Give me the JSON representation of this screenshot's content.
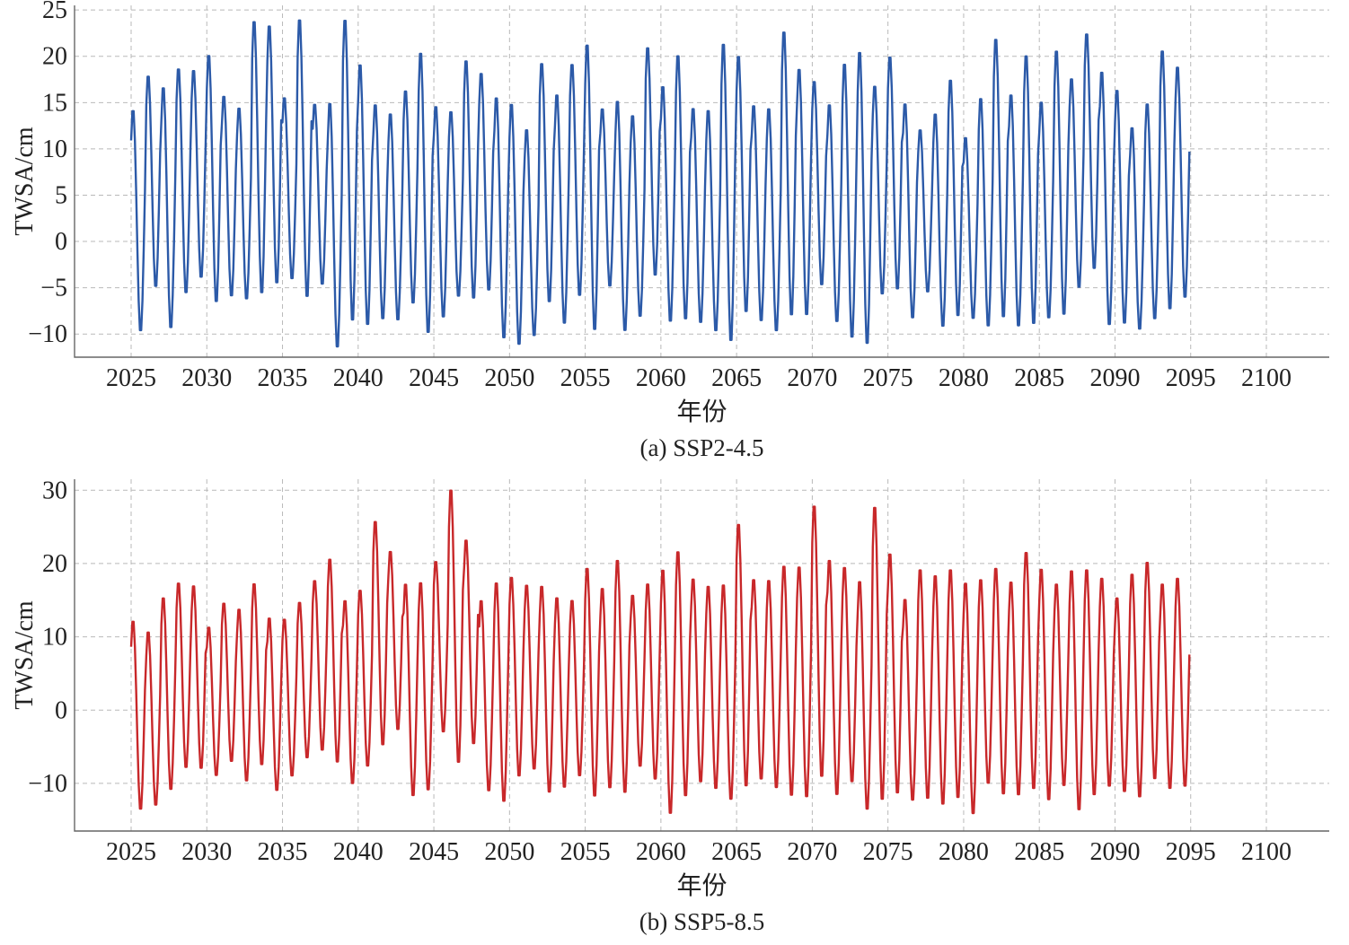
{
  "chart_data": [
    {
      "type": "line",
      "caption": "(a) SSP2-4.5",
      "xlabel": "年份",
      "ylabel": "TWSA/cm",
      "xlim": [
        2025,
        2101
      ],
      "ylim": [
        -12.5,
        25.5
      ],
      "xticks": [
        2025,
        2030,
        2035,
        2040,
        2045,
        2050,
        2055,
        2060,
        2065,
        2070,
        2075,
        2080,
        2085,
        2090,
        2095,
        2100
      ],
      "yticks": [
        -10,
        -5,
        0,
        5,
        10,
        15,
        20,
        25
      ],
      "grid": true,
      "series": [
        {
          "color": "#2c5aa8",
          "annual_max": [
            14.5,
            18.2,
            17.0,
            19.0,
            18.8,
            20.5,
            16.0,
            14.7,
            24.2,
            23.7,
            15.8,
            24.4,
            15.1,
            15.3,
            24.4,
            19.5,
            15.1,
            14.1,
            16.6,
            20.8,
            14.9,
            14.3,
            19.9,
            18.5,
            15.9,
            15.2,
            12.4,
            19.6,
            16.2,
            19.5,
            21.7,
            14.6,
            15.5,
            13.9,
            21.3,
            17.1,
            20.5,
            14.7,
            14.5,
            21.8,
            20.4,
            15.0,
            14.7,
            23.1,
            19.0,
            17.6,
            15.1,
            19.6,
            20.9,
            17.1,
            20.3,
            15.2,
            12.3,
            14.1,
            17.8,
            11.5,
            15.8,
            22.3,
            16.2,
            20.5,
            15.4,
            21.0,
            17.9,
            22.8,
            18.7,
            16.7,
            12.6,
            15.2,
            21.0,
            19.2
          ],
          "annual_min": [
            -10.0,
            -5.2,
            -9.7,
            -5.9,
            -4.2,
            -6.9,
            -6.2,
            -6.5,
            -6.0,
            -4.9,
            -4.3,
            -6.4,
            -4.9,
            -11.8,
            -9.0,
            -9.4,
            -8.7,
            -8.8,
            -7.0,
            -10.3,
            -8.5,
            -6.2,
            -6.5,
            -5.6,
            -10.8,
            -11.5,
            -10.5,
            -6.9,
            -9.2,
            -6.2,
            -10.0,
            -5.1,
            -10.0,
            -8.4,
            -4.0,
            -9.0,
            -8.8,
            -9.1,
            -10.0,
            -11.2,
            -8.0,
            -8.9,
            -10.0,
            -8.4,
            -8.3,
            -5.0,
            -9.0,
            -10.8,
            -11.5,
            -6.0,
            -5.5,
            -8.6,
            -5.7,
            -9.5,
            -8.4,
            -8.6,
            -9.5,
            -8.6,
            -9.5,
            -9.3,
            -8.6,
            -8.3,
            -5.3,
            -3.3,
            -9.4,
            -9.2,
            -9.8,
            -8.7,
            -7.7,
            -6.4
          ]
        }
      ]
    },
    {
      "type": "line",
      "caption": "(b) SSP5-8.5",
      "xlabel": "年份",
      "ylabel": "TWSA/cm",
      "xlim": [
        2025,
        2101
      ],
      "ylim": [
        -16.5,
        31.5
      ],
      "xticks": [
        2025,
        2030,
        2035,
        2040,
        2045,
        2050,
        2055,
        2060,
        2065,
        2070,
        2075,
        2080,
        2085,
        2090,
        2095,
        2100
      ],
      "yticks": [
        -10,
        0,
        10,
        20,
        30
      ],
      "grid": true,
      "series": [
        {
          "color": "#c8282a",
          "annual_max": [
            12.5,
            11.0,
            15.7,
            17.7,
            17.3,
            11.6,
            14.9,
            14.1,
            17.6,
            12.9,
            12.7,
            15.0,
            18.0,
            21.0,
            15.3,
            16.7,
            26.2,
            22.0,
            17.6,
            17.8,
            20.6,
            30.6,
            23.6,
            15.3,
            17.8,
            18.5,
            17.4,
            17.3,
            15.7,
            15.3,
            19.8,
            17.0,
            20.9,
            16.0,
            17.6,
            19.6,
            22.1,
            18.3,
            17.3,
            17.5,
            25.9,
            18.2,
            18.1,
            20.1,
            20.0,
            28.4,
            20.9,
            19.9,
            18.0,
            28.3,
            21.8,
            15.5,
            19.6,
            18.8,
            19.6,
            17.8,
            18.2,
            19.8,
            17.9,
            22.0,
            19.7,
            17.6,
            19.5,
            19.6,
            18.4,
            15.7,
            19.0,
            20.6,
            17.6,
            18.4
          ],
          "annual_min": [
            -13.9,
            -13.3,
            -11.2,
            -8.2,
            -8.3,
            -9.2,
            -7.3,
            -10.0,
            -7.8,
            -11.3,
            -9.3,
            -6.8,
            -5.8,
            -7.5,
            -10.4,
            -8.0,
            -5.2,
            -3.0,
            -12.1,
            -11.3,
            -3.3,
            -7.7,
            -5.0,
            -11.4,
            -12.9,
            -9.4,
            -8.4,
            -11.6,
            -10.9,
            -9.3,
            -12.2,
            -11.0,
            -11.7,
            -8.0,
            -9.8,
            -14.6,
            -12.2,
            -10.2,
            -11.1,
            -12.6,
            -10.9,
            -9.8,
            -11.0,
            -12.1,
            -12.3,
            -9.6,
            -12.0,
            -10.2,
            -14.0,
            -12.8,
            -11.8,
            -12.7,
            -12.5,
            -13.3,
            -12.4,
            -14.6,
            -10.4,
            -11.9,
            -12.0,
            -11.2,
            -12.7,
            -10.7,
            -14.1,
            -12.0,
            -10.8,
            -11.5,
            -12.3,
            -9.8,
            -11.1,
            -10.8
          ]
        }
      ]
    }
  ]
}
